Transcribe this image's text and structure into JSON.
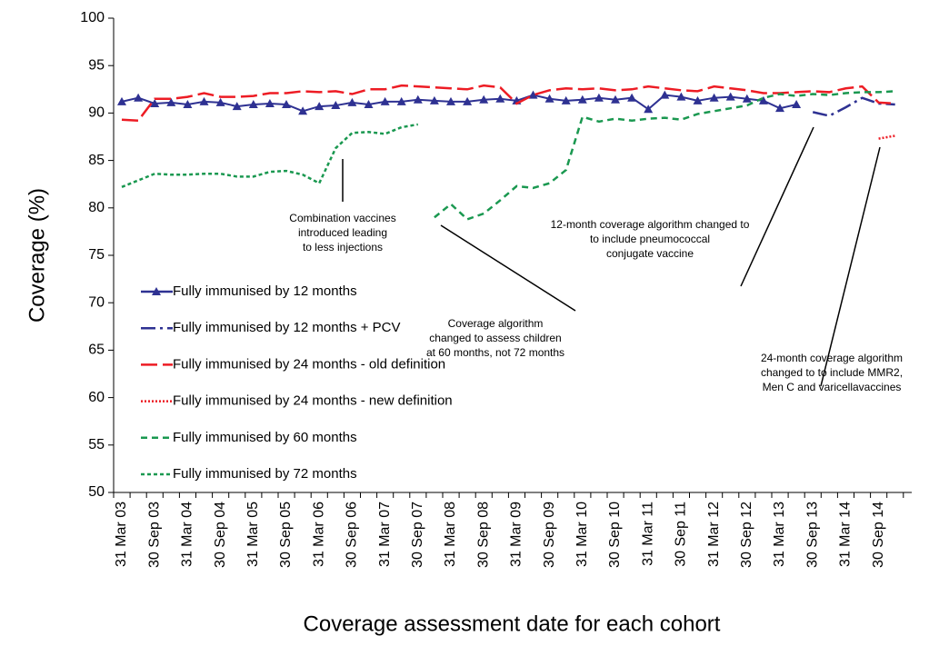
{
  "chart_data": {
    "type": "line",
    "y_label": "Coverage (%)",
    "x_label": "Coverage assessment date for each cohort",
    "categories": [
      "31 Mar 03",
      null,
      "30 Sep 03",
      null,
      "31 Mar 04",
      null,
      "30 Sep 04",
      null,
      "31 Mar 05",
      null,
      "30 Sep 05",
      null,
      "31 Mar 06",
      null,
      "30 Sep 06",
      null,
      "31 Mar 07",
      null,
      "30 Sep 07",
      null,
      "31 Mar 08",
      null,
      "30 Sep 08",
      null,
      "31 Mar 09",
      null,
      "30 Sep 09",
      null,
      "31 Mar 10",
      null,
      "30 Sep 10",
      null,
      "31 Mar 11",
      null,
      "30 Sep 11",
      null,
      "31 Mar 12",
      null,
      "30 Sep 12",
      null,
      "31 Mar 13",
      null,
      "30 Sep 13",
      null,
      "31 Mar 14",
      null,
      "30 Sep 14",
      null
    ],
    "ylim": [
      50,
      100
    ],
    "yticks": [
      50,
      55,
      60,
      65,
      70,
      75,
      80,
      85,
      90,
      95,
      100
    ],
    "legend": "left",
    "series": [
      {
        "name": "Fully immunised by 12 months",
        "color": "#2e3192",
        "style": "solid",
        "marker": "triangle",
        "values": [
          91.2,
          91.6,
          91.0,
          91.1,
          90.9,
          91.2,
          91.1,
          90.7,
          90.9,
          91.0,
          90.9,
          90.2,
          90.7,
          90.8,
          91.1,
          90.9,
          91.2,
          91.2,
          91.4,
          91.3,
          91.2,
          91.2,
          91.4,
          91.5,
          91.3,
          91.9,
          91.5,
          91.3,
          91.4,
          91.6,
          91.4,
          91.6,
          90.4,
          91.9,
          91.7,
          91.3,
          91.6,
          91.7,
          91.5,
          91.3,
          90.5,
          90.9,
          null,
          null,
          null,
          null,
          null,
          null
        ]
      },
      {
        "name": "Fully immunised by 12 months + PCV",
        "color": "#2e3192",
        "style": "dashdot",
        "values": [
          null,
          null,
          null,
          null,
          null,
          null,
          null,
          null,
          null,
          null,
          null,
          null,
          null,
          null,
          null,
          null,
          null,
          null,
          null,
          null,
          null,
          null,
          null,
          null,
          null,
          null,
          null,
          null,
          null,
          null,
          null,
          null,
          null,
          null,
          null,
          null,
          null,
          null,
          null,
          null,
          null,
          null,
          90.1,
          89.7,
          90.6,
          91.6,
          91.0,
          90.9
        ]
      },
      {
        "name": "Fully immunised by 24 months - old definition",
        "color": "#ed1c24",
        "style": "longdash",
        "values": [
          89.3,
          89.2,
          91.5,
          91.5,
          91.7,
          92.1,
          91.7,
          91.7,
          91.8,
          92.1,
          92.1,
          92.3,
          92.2,
          92.3,
          92.0,
          92.5,
          92.5,
          92.9,
          92.8,
          92.7,
          92.6,
          92.5,
          92.9,
          92.7,
          91.0,
          91.9,
          92.4,
          92.6,
          92.5,
          92.6,
          92.4,
          92.5,
          92.8,
          92.6,
          92.4,
          92.3,
          92.8,
          92.6,
          92.4,
          92.1,
          92.1,
          92.2,
          92.3,
          92.2,
          92.6,
          92.8,
          91.1,
          91.0
        ]
      },
      {
        "name": "Fully immunised by 24 months - new definition",
        "color": "#ed1c24",
        "style": "dot",
        "values": [
          null,
          null,
          null,
          null,
          null,
          null,
          null,
          null,
          null,
          null,
          null,
          null,
          null,
          null,
          null,
          null,
          null,
          null,
          null,
          null,
          null,
          null,
          null,
          null,
          null,
          null,
          null,
          null,
          null,
          null,
          null,
          null,
          null,
          null,
          null,
          null,
          null,
          null,
          null,
          null,
          null,
          null,
          null,
          null,
          null,
          null,
          87.3,
          87.6
        ]
      },
      {
        "name": "Fully immunised by 60 months",
        "color": "#1a9850",
        "style": "dash",
        "values": [
          null,
          null,
          null,
          null,
          null,
          null,
          null,
          null,
          null,
          null,
          null,
          null,
          null,
          null,
          null,
          null,
          null,
          null,
          null,
          79.0,
          80.4,
          78.8,
          79.4,
          80.8,
          82.3,
          82.1,
          82.6,
          84.0,
          89.6,
          89.1,
          89.4,
          89.2,
          89.4,
          89.5,
          89.3,
          89.9,
          90.2,
          90.5,
          90.8,
          91.6,
          92.0,
          91.8,
          92.0,
          91.9,
          92.1,
          92.2,
          92.2,
          92.3
        ]
      },
      {
        "name": "Fully immunised by 72 months",
        "color": "#1a9850",
        "style": "shortdash",
        "values": [
          82.2,
          82.9,
          83.6,
          83.5,
          83.5,
          83.6,
          83.6,
          83.3,
          83.3,
          83.8,
          83.9,
          83.5,
          82.6,
          86.3,
          87.9,
          88.0,
          87.8,
          88.5,
          88.8,
          null,
          null,
          null,
          null,
          null,
          null,
          null,
          null,
          null,
          null,
          null,
          null,
          null,
          null,
          null,
          null,
          null,
          null,
          null,
          null,
          null,
          null,
          null,
          null,
          null,
          null,
          null,
          null,
          null
        ]
      }
    ],
    "annotations": [
      {
        "lines": [
          "Combination vaccines",
          "introduced leading",
          "to less injections"
        ]
      },
      {
        "lines": [
          "Coverage algorithm",
          "changed to assess children",
          "at 60 months, not 72 months"
        ]
      },
      {
        "lines": [
          "12-month coverage algorithm changed to",
          "to include pneumococcal",
          "conjugate vaccine"
        ]
      },
      {
        "lines": [
          "24-month coverage algorithm",
          "changed to to include MMR2,",
          "Men C and varicellavaccines"
        ]
      }
    ]
  }
}
